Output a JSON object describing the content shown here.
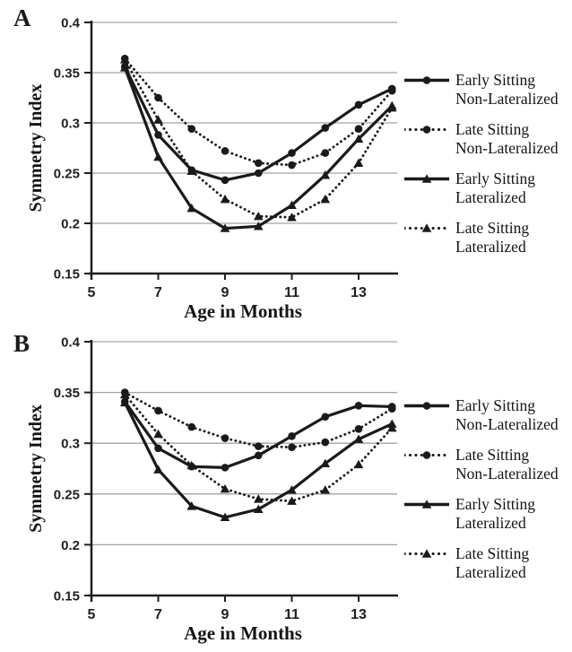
{
  "figure_title": "Symmetry Index by Age in Months, panels A and B",
  "colors": {
    "series": "#1a1a1a",
    "grid": "#a3a3a3",
    "axis": "#1f1f1f",
    "background": "#ffffff"
  },
  "chart_data": [
    {
      "type": "line",
      "panel": "A",
      "title": "",
      "xlabel": "Age in Months",
      "ylabel": "Symmetry Index",
      "x": [
        6,
        7,
        8,
        9,
        10,
        11,
        12,
        13,
        14
      ],
      "xlim": [
        5,
        14.2
      ],
      "ylim": [
        0.15,
        0.4
      ],
      "xticks": [
        5,
        7,
        9,
        11,
        13
      ],
      "yticks": [
        0.4,
        0.35,
        0.3,
        0.25,
        0.2,
        0.15
      ],
      "grid": "horizontal",
      "legend_position": "right",
      "series": [
        {
          "name": "Early Sitting Non-Lateralized",
          "legend_lines": [
            "Early Sitting",
            "Non-Lateralized"
          ],
          "line": "solid",
          "marker": "circle",
          "values": [
            0.356,
            0.288,
            0.253,
            0.243,
            0.25,
            0.27,
            0.295,
            0.318,
            0.334
          ]
        },
        {
          "name": "Late Sitting Non-Lateralized",
          "legend_lines": [
            "Late Sitting",
            "Non-Lateralized"
          ],
          "line": "dotted",
          "marker": "circle",
          "values": [
            0.364,
            0.325,
            0.294,
            0.272,
            0.26,
            0.258,
            0.27,
            0.294,
            0.332
          ]
        },
        {
          "name": "Early Sitting Lateralized",
          "legend_lines": [
            "Early Sitting",
            "Lateralized"
          ],
          "line": "solid",
          "marker": "triangle",
          "values": [
            0.355,
            0.266,
            0.215,
            0.195,
            0.197,
            0.218,
            0.248,
            0.284,
            0.317
          ]
        },
        {
          "name": "Late Sitting Lateralized",
          "legend_lines": [
            "Late Sitting",
            "Lateralized"
          ],
          "line": "dotted",
          "marker": "triangle",
          "values": [
            0.363,
            0.303,
            0.252,
            0.224,
            0.207,
            0.206,
            0.224,
            0.26,
            0.315
          ]
        }
      ]
    },
    {
      "type": "line",
      "panel": "B",
      "title": "",
      "xlabel": "Age in Months",
      "ylabel": "Symmetry Index",
      "x": [
        6,
        7,
        8,
        9,
        10,
        11,
        12,
        13,
        14
      ],
      "xlim": [
        5,
        14.2
      ],
      "ylim": [
        0.15,
        0.4
      ],
      "xticks": [
        5,
        7,
        9,
        11,
        13
      ],
      "yticks": [
        0.4,
        0.35,
        0.3,
        0.25,
        0.2,
        0.15
      ],
      "grid": "horizontal",
      "legend_position": "right",
      "series": [
        {
          "name": "Early Sitting Non-Lateralized",
          "legend_lines": [
            "Early Sitting",
            "Non-Lateralized"
          ],
          "line": "solid",
          "marker": "circle",
          "values": [
            0.341,
            0.295,
            0.277,
            0.276,
            0.288,
            0.307,
            0.326,
            0.337,
            0.336
          ]
        },
        {
          "name": "Late Sitting Non-Lateralized",
          "legend_lines": [
            "Late Sitting",
            "Non-Lateralized"
          ],
          "line": "dotted",
          "marker": "circle",
          "values": [
            0.35,
            0.332,
            0.316,
            0.305,
            0.297,
            0.296,
            0.301,
            0.314,
            0.334
          ]
        },
        {
          "name": "Early Sitting Lateralized",
          "legend_lines": [
            "Early Sitting",
            "Lateralized"
          ],
          "line": "solid",
          "marker": "triangle",
          "values": [
            0.34,
            0.274,
            0.238,
            0.227,
            0.235,
            0.254,
            0.28,
            0.304,
            0.319
          ]
        },
        {
          "name": "Late Sitting Lateralized",
          "legend_lines": [
            "Late Sitting",
            "Lateralized"
          ],
          "line": "dotted",
          "marker": "triangle",
          "values": [
            0.348,
            0.309,
            0.278,
            0.255,
            0.245,
            0.243,
            0.254,
            0.279,
            0.315
          ]
        }
      ]
    }
  ]
}
